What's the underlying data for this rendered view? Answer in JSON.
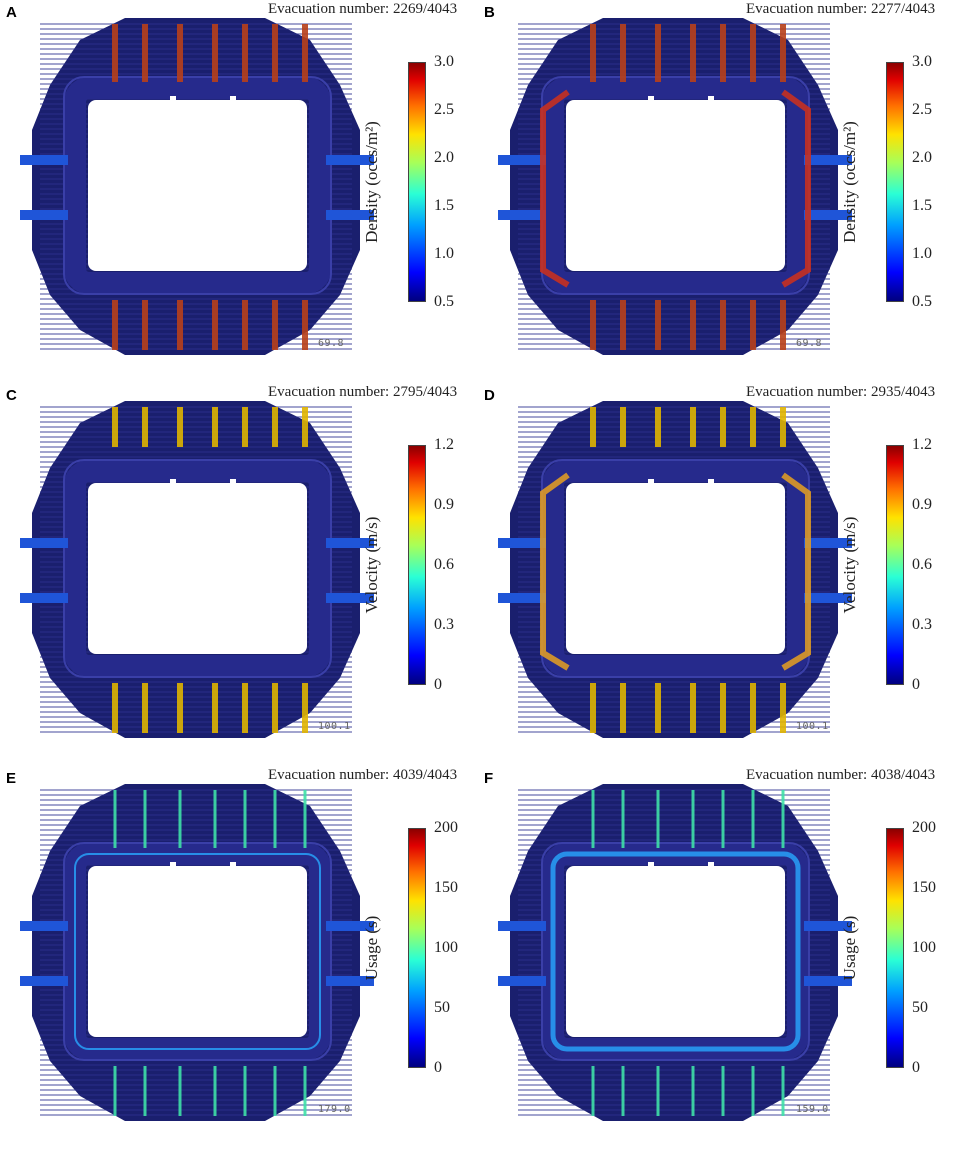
{
  "panels": [
    {
      "letter": "A",
      "evac": "Evacuation number: 2269/4043",
      "cbar_title": "Density (occs/m²)",
      "ticks": [
        "3.0",
        "2.5",
        "2.0",
        "1.5",
        "1.0",
        "0.5"
      ],
      "timestamp": "69.8",
      "heat": "density",
      "side": "left"
    },
    {
      "letter": "B",
      "evac": "Evacuation number: 2277/4043",
      "cbar_title": "Density (occs/m²)",
      "ticks": [
        "3.0",
        "2.5",
        "2.0",
        "1.5",
        "1.0",
        "0.5"
      ],
      "timestamp": "69.8",
      "heat": "density",
      "side": "both"
    },
    {
      "letter": "C",
      "evac": "Evacuation number: 2795/4043",
      "cbar_title": "Velocity (m/s)",
      "ticks": [
        "1.2",
        "0.9",
        "0.6",
        "0.3",
        "0"
      ],
      "timestamp": "100.1",
      "heat": "velocity",
      "side": "left"
    },
    {
      "letter": "D",
      "evac": "Evacuation number: 2935/4043",
      "cbar_title": "Velocity (m/s)",
      "ticks": [
        "1.2",
        "0.9",
        "0.6",
        "0.3",
        "0"
      ],
      "timestamp": "100.1",
      "heat": "velocity",
      "side": "both"
    },
    {
      "letter": "E",
      "evac": "Evacuation number: 4039/4043",
      "cbar_title": "Usage (s)",
      "ticks": [
        "200",
        "150",
        "100",
        "50",
        "0"
      ],
      "timestamp": "179.0",
      "heat": "usage",
      "side": "left"
    },
    {
      "letter": "F",
      "evac": "Evacuation number: 4038/4043",
      "cbar_title": "Usage (s)",
      "ticks": [
        "200",
        "150",
        "100",
        "50",
        "0"
      ],
      "timestamp": "159.0",
      "heat": "usage",
      "side": "both"
    }
  ],
  "colors": {
    "floor": "#1a1f6e",
    "corridor": "#262a8c",
    "outline": "#3a3fa8",
    "hot": "#b8401a",
    "warm": "#e0b400",
    "cool": "#3fe0a8",
    "cyan": "#28a8ff"
  }
}
